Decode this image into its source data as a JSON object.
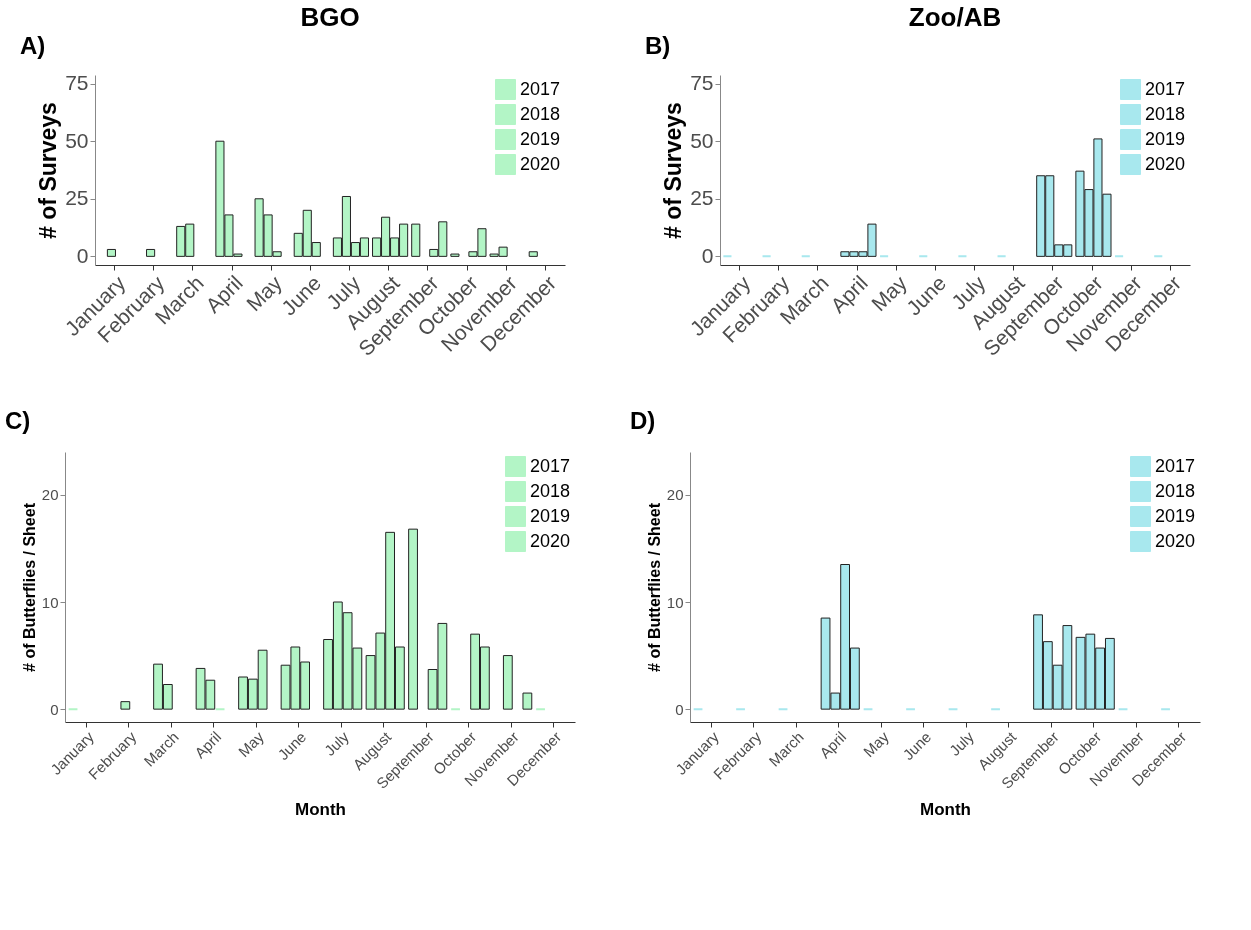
{
  "chart_data": [
    {
      "type": "bar",
      "title": "BGO",
      "ylabel": "# of Surveys",
      "annotations": [
        "A)"
      ],
      "categories": [
        "January",
        "February",
        "March",
        "April",
        "May",
        "June",
        "July",
        "August",
        "September",
        "October",
        "November",
        "December"
      ],
      "ylim": [
        -3.75,
        78.75
      ],
      "yticks": [
        0,
        25,
        50,
        75
      ],
      "legend": "top right",
      "grid": false,
      "series": [
        {
          "name": "2017",
          "color": "#b3f5c6",
          "values": [
            null,
            null,
            13,
            50,
            25,
            10,
            8,
            8,
            14,
            1,
            1,
            2
          ]
        },
        {
          "name": "2018",
          "color": "#b3f5c6",
          "values": [
            3,
            3,
            14,
            18,
            18,
            20,
            26,
            17,
            null,
            null,
            4,
            null
          ]
        },
        {
          "name": "2019",
          "color": "#b3f5c6",
          "values": [
            null,
            null,
            null,
            1,
            2,
            6,
            6,
            8,
            3,
            2,
            null,
            null
          ]
        },
        {
          "name": "2020",
          "color": "#b3f5c6",
          "values": [
            null,
            null,
            null,
            null,
            null,
            null,
            8,
            14,
            15,
            12,
            null,
            null
          ]
        }
      ]
    },
    {
      "type": "bar",
      "title": "Zoo/AB",
      "ylabel": "# of Surveys",
      "annotations": [
        "B)"
      ],
      "categories": [
        "January",
        "February",
        "March",
        "April",
        "May",
        "June",
        "July",
        "August",
        "September",
        "October",
        "November",
        "December"
      ],
      "ylim": [
        -3.75,
        78.75
      ],
      "yticks": [
        0,
        25,
        50,
        75
      ],
      "legend": "top right",
      "grid": false,
      "series": [
        {
          "name": "2017",
          "color": "#a8e8ee",
          "values": [
            0,
            0,
            0,
            2,
            0,
            0,
            0,
            0,
            35,
            37,
            0,
            0
          ]
        },
        {
          "name": "2018",
          "color": "#a8e8ee",
          "values": [
            null,
            null,
            null,
            2,
            null,
            null,
            null,
            null,
            35,
            29,
            null,
            null
          ]
        },
        {
          "name": "2019",
          "color": "#a8e8ee",
          "values": [
            null,
            null,
            null,
            2,
            null,
            null,
            null,
            null,
            5,
            51,
            null,
            null
          ]
        },
        {
          "name": "2020",
          "color": "#a8e8ee",
          "values": [
            null,
            null,
            null,
            14,
            null,
            null,
            null,
            null,
            5,
            27,
            null,
            null
          ]
        }
      ]
    },
    {
      "type": "bar",
      "xlabel": "Month",
      "ylabel": "# of Butterflies / Sheet",
      "annotations": [
        "C)"
      ],
      "categories": [
        "January",
        "February",
        "March",
        "April",
        "May",
        "June",
        "July",
        "August",
        "September",
        "October",
        "November",
        "December"
      ],
      "ylim": [
        -1.2,
        24
      ],
      "yticks": [
        0,
        10,
        20
      ],
      "legend": "top right",
      "grid": false,
      "series": [
        {
          "name": "2017",
          "color": "#b3f5c6",
          "values": [
            0,
            null,
            4.2,
            3.8,
            3.0,
            4.1,
            6.5,
            5.0,
            16.8,
            0,
            null,
            0
          ]
        },
        {
          "name": "2018",
          "color": "#b3f5c6",
          "values": [
            null,
            0.7,
            2.3,
            2.7,
            2.8,
            5.8,
            10.0,
            7.1,
            null,
            null,
            5.0,
            null
          ]
        },
        {
          "name": "2019",
          "color": "#b3f5c6",
          "values": [
            null,
            null,
            null,
            0,
            5.5,
            4.4,
            9.0,
            16.5,
            3.7,
            7.0,
            null,
            null
          ]
        },
        {
          "name": "2020",
          "color": "#b3f5c6",
          "values": [
            null,
            null,
            null,
            null,
            null,
            null,
            5.7,
            5.8,
            8.0,
            5.8,
            1.5,
            null
          ]
        }
      ]
    },
    {
      "type": "bar",
      "xlabel": "Month",
      "ylabel": "# of Butterflies / Sheet",
      "annotations": [
        "D)"
      ],
      "categories": [
        "January",
        "February",
        "March",
        "April",
        "May",
        "June",
        "July",
        "August",
        "September",
        "October",
        "November",
        "December"
      ],
      "ylim": [
        -1.2,
        24
      ],
      "yticks": [
        0,
        10,
        20
      ],
      "legend": "top right",
      "grid": false,
      "series": [
        {
          "name": "2017",
          "color": "#a8e8ee",
          "values": [
            0,
            0,
            0,
            8.5,
            0,
            0,
            0,
            0,
            8.8,
            6.7,
            0,
            0
          ]
        },
        {
          "name": "2018",
          "color": "#a8e8ee",
          "values": [
            null,
            null,
            null,
            1.5,
            null,
            null,
            null,
            null,
            6.3,
            7.0,
            null,
            null
          ]
        },
        {
          "name": "2019",
          "color": "#a8e8ee",
          "values": [
            null,
            null,
            null,
            13.5,
            null,
            null,
            null,
            null,
            4.1,
            5.7,
            null,
            null
          ]
        },
        {
          "name": "2020",
          "color": "#a8e8ee",
          "values": [
            null,
            null,
            null,
            5.7,
            null,
            null,
            null,
            null,
            7.8,
            6.6,
            null,
            null
          ]
        }
      ]
    }
  ]
}
